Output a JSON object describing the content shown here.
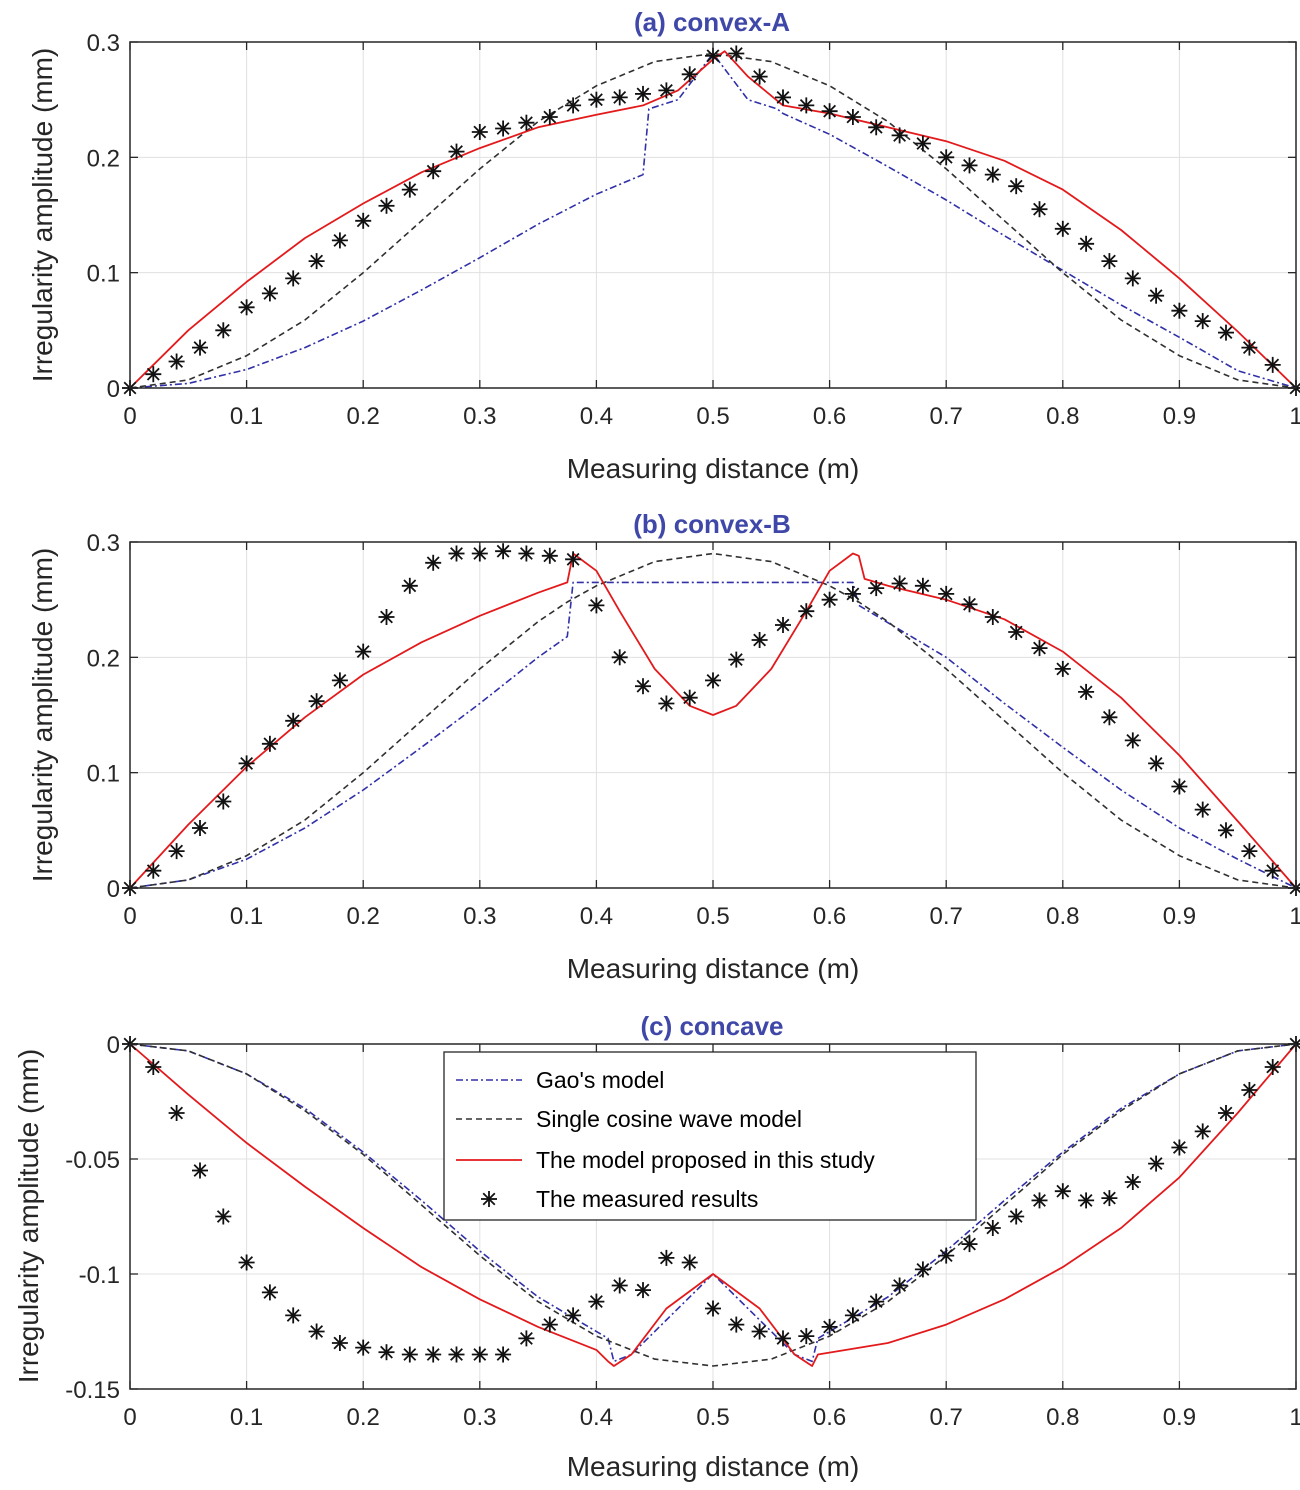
{
  "colors": {
    "gao": "#3030a8",
    "cosine": "#303030",
    "proposed": "#e31a1c",
    "measured": "#111111",
    "title": "#3f48a8",
    "grid": "#e0e0e0",
    "axis": "#262626"
  },
  "legend": {
    "gao": "Gao's model",
    "cosine": "Single cosine wave model",
    "proposed": "The model proposed in this study",
    "measured": "The measured results"
  },
  "chart_data": [
    {
      "type": "line",
      "title": "(a) convex-A",
      "xlabel": "Measuring distance (m)",
      "ylabel": "Irregularity amplitude (mm)",
      "xlim": [
        0,
        1
      ],
      "ylim": [
        0,
        0.3
      ],
      "xticks": [
        "0",
        "0.1",
        "0.2",
        "0.3",
        "0.4",
        "0.5",
        "0.6",
        "0.7",
        "0.8",
        "0.9",
        "1"
      ],
      "yticks": [
        "0",
        "0.1",
        "0.2",
        "0.3"
      ],
      "grid": true,
      "series": [
        {
          "name": "Gao's model",
          "key": "gao",
          "style": "dashdot",
          "x": [
            0,
            0.05,
            0.1,
            0.15,
            0.2,
            0.25,
            0.3,
            0.35,
            0.4,
            0.44,
            0.445,
            0.47,
            0.5,
            0.53,
            0.555,
            0.56,
            0.6,
            0.65,
            0.7,
            0.75,
            0.8,
            0.85,
            0.9,
            0.95,
            1.0
          ],
          "y": [
            0,
            0.004,
            0.016,
            0.035,
            0.058,
            0.085,
            0.113,
            0.142,
            0.168,
            0.185,
            0.242,
            0.25,
            0.29,
            0.25,
            0.242,
            0.238,
            0.22,
            0.192,
            0.163,
            0.132,
            0.102,
            0.072,
            0.044,
            0.015,
            0
          ]
        },
        {
          "name": "Single cosine wave model",
          "key": "cosine",
          "style": "dashed",
          "x": [
            0,
            0.05,
            0.1,
            0.15,
            0.2,
            0.25,
            0.3,
            0.35,
            0.4,
            0.45,
            0.5,
            0.55,
            0.6,
            0.65,
            0.7,
            0.75,
            0.8,
            0.85,
            0.9,
            0.95,
            1.0
          ],
          "y": [
            0,
            0.007,
            0.028,
            0.059,
            0.1,
            0.145,
            0.19,
            0.231,
            0.262,
            0.283,
            0.29,
            0.283,
            0.262,
            0.231,
            0.19,
            0.145,
            0.1,
            0.059,
            0.028,
            0.007,
            0
          ]
        },
        {
          "name": "The model proposed in this study",
          "key": "proposed",
          "style": "solid",
          "x": [
            0,
            0.05,
            0.1,
            0.15,
            0.2,
            0.25,
            0.3,
            0.35,
            0.4,
            0.44,
            0.47,
            0.5,
            0.51,
            0.53,
            0.56,
            0.6,
            0.65,
            0.7,
            0.75,
            0.8,
            0.85,
            0.9,
            0.95,
            1.0
          ],
          "y": [
            0,
            0.05,
            0.092,
            0.13,
            0.16,
            0.187,
            0.208,
            0.226,
            0.237,
            0.245,
            0.258,
            0.285,
            0.292,
            0.27,
            0.245,
            0.238,
            0.226,
            0.214,
            0.197,
            0.172,
            0.137,
            0.095,
            0.049,
            0
          ]
        },
        {
          "name": "The measured results",
          "key": "measured",
          "style": "marker",
          "x": [
            0,
            0.02,
            0.04,
            0.06,
            0.08,
            0.1,
            0.12,
            0.14,
            0.16,
            0.18,
            0.2,
            0.22,
            0.24,
            0.26,
            0.28,
            0.3,
            0.32,
            0.34,
            0.36,
            0.38,
            0.4,
            0.42,
            0.44,
            0.46,
            0.48,
            0.5,
            0.52,
            0.54,
            0.56,
            0.58,
            0.6,
            0.62,
            0.64,
            0.66,
            0.68,
            0.7,
            0.72,
            0.74,
            0.76,
            0.78,
            0.8,
            0.82,
            0.84,
            0.86,
            0.88,
            0.9,
            0.92,
            0.94,
            0.96,
            0.98,
            1.0
          ],
          "y": [
            0,
            0.012,
            0.023,
            0.035,
            0.05,
            0.07,
            0.082,
            0.095,
            0.11,
            0.128,
            0.145,
            0.158,
            0.172,
            0.188,
            0.205,
            0.222,
            0.225,
            0.23,
            0.235,
            0.245,
            0.25,
            0.252,
            0.255,
            0.258,
            0.272,
            0.288,
            0.29,
            0.27,
            0.252,
            0.245,
            0.24,
            0.235,
            0.226,
            0.219,
            0.212,
            0.2,
            0.193,
            0.185,
            0.175,
            0.155,
            0.138,
            0.125,
            0.11,
            0.095,
            0.08,
            0.067,
            0.058,
            0.048,
            0.035,
            0.02,
            0
          ]
        }
      ]
    },
    {
      "type": "line",
      "title": "(b) convex-B",
      "xlabel": "Measuring distance (m)",
      "ylabel": "Irregularity amplitude (mm)",
      "xlim": [
        0,
        1
      ],
      "ylim": [
        0,
        0.3
      ],
      "xticks": [
        "0",
        "0.1",
        "0.2",
        "0.3",
        "0.4",
        "0.5",
        "0.6",
        "0.7",
        "0.8",
        "0.9",
        "1"
      ],
      "yticks": [
        "0",
        "0.1",
        "0.2",
        "0.3"
      ],
      "grid": true,
      "series": [
        {
          "name": "Gao's model",
          "key": "gao",
          "style": "dashdot",
          "x": [
            0,
            0.05,
            0.1,
            0.15,
            0.2,
            0.25,
            0.3,
            0.35,
            0.375,
            0.38,
            0.62,
            0.625,
            0.65,
            0.7,
            0.75,
            0.8,
            0.85,
            0.9,
            0.95,
            1.0
          ],
          "y": [
            0,
            0.007,
            0.025,
            0.052,
            0.085,
            0.122,
            0.16,
            0.2,
            0.218,
            0.265,
            0.265,
            0.245,
            0.23,
            0.2,
            0.16,
            0.122,
            0.085,
            0.052,
            0.025,
            0
          ]
        },
        {
          "name": "Single cosine wave model",
          "key": "cosine",
          "style": "dashed",
          "x": [
            0,
            0.05,
            0.1,
            0.15,
            0.2,
            0.25,
            0.3,
            0.35,
            0.375,
            0.4,
            0.45,
            0.5,
            0.55,
            0.6,
            0.625,
            0.65,
            0.7,
            0.75,
            0.8,
            0.85,
            0.9,
            0.95,
            1.0
          ],
          "y": [
            0,
            0.007,
            0.028,
            0.059,
            0.1,
            0.145,
            0.19,
            0.231,
            0.248,
            0.262,
            0.283,
            0.29,
            0.283,
            0.262,
            0.248,
            0.231,
            0.19,
            0.145,
            0.1,
            0.059,
            0.028,
            0.007,
            0
          ]
        },
        {
          "name": "The model proposed in this study",
          "key": "proposed",
          "style": "solid",
          "x": [
            0,
            0.05,
            0.1,
            0.15,
            0.2,
            0.25,
            0.3,
            0.35,
            0.375,
            0.38,
            0.4,
            0.42,
            0.45,
            0.48,
            0.5,
            0.52,
            0.55,
            0.58,
            0.6,
            0.62,
            0.625,
            0.63,
            0.65,
            0.7,
            0.75,
            0.8,
            0.85,
            0.9,
            0.95,
            1.0
          ],
          "y": [
            0,
            0.055,
            0.105,
            0.148,
            0.185,
            0.213,
            0.236,
            0.256,
            0.265,
            0.29,
            0.275,
            0.24,
            0.19,
            0.158,
            0.15,
            0.158,
            0.19,
            0.24,
            0.275,
            0.29,
            0.288,
            0.268,
            0.262,
            0.25,
            0.233,
            0.205,
            0.165,
            0.115,
            0.058,
            0
          ]
        },
        {
          "name": "The measured results",
          "key": "measured",
          "style": "marker",
          "x": [
            0,
            0.02,
            0.04,
            0.06,
            0.08,
            0.1,
            0.12,
            0.14,
            0.16,
            0.18,
            0.2,
            0.22,
            0.24,
            0.26,
            0.28,
            0.3,
            0.32,
            0.34,
            0.36,
            0.38,
            0.4,
            0.42,
            0.44,
            0.46,
            0.48,
            0.5,
            0.52,
            0.54,
            0.56,
            0.58,
            0.6,
            0.62,
            0.64,
            0.66,
            0.68,
            0.7,
            0.72,
            0.74,
            0.76,
            0.78,
            0.8,
            0.82,
            0.84,
            0.86,
            0.88,
            0.9,
            0.92,
            0.94,
            0.96,
            0.98,
            1.0
          ],
          "y": [
            0,
            0.015,
            0.032,
            0.052,
            0.075,
            0.108,
            0.125,
            0.145,
            0.162,
            0.18,
            0.205,
            0.235,
            0.262,
            0.282,
            0.29,
            0.29,
            0.292,
            0.29,
            0.288,
            0.285,
            0.245,
            0.2,
            0.175,
            0.16,
            0.165,
            0.18,
            0.198,
            0.215,
            0.228,
            0.24,
            0.25,
            0.255,
            0.26,
            0.264,
            0.262,
            0.255,
            0.246,
            0.235,
            0.222,
            0.208,
            0.19,
            0.17,
            0.148,
            0.128,
            0.108,
            0.088,
            0.068,
            0.05,
            0.032,
            0.015,
            0
          ]
        }
      ]
    },
    {
      "type": "line",
      "title": "(c) concave",
      "xlabel": "Measuring distance (m)",
      "ylabel": "Irregularity amplitude (mm)",
      "xlim": [
        0,
        1
      ],
      "ylim": [
        -0.15,
        0
      ],
      "xticks": [
        "0",
        "0.1",
        "0.2",
        "0.3",
        "0.4",
        "0.5",
        "0.6",
        "0.7",
        "0.8",
        "0.9",
        "1"
      ],
      "yticks": [
        "-0.15",
        "-0.1",
        "-0.05",
        "0"
      ],
      "grid": true,
      "series": [
        {
          "name": "Gao's model",
          "key": "gao",
          "style": "dashdot",
          "x": [
            0,
            0.05,
            0.1,
            0.15,
            0.2,
            0.25,
            0.3,
            0.35,
            0.41,
            0.415,
            0.43,
            0.5,
            0.57,
            0.585,
            0.59,
            0.65,
            0.7,
            0.75,
            0.8,
            0.85,
            0.9,
            0.95,
            1.0
          ],
          "y": [
            0,
            -0.003,
            -0.013,
            -0.028,
            -0.047,
            -0.068,
            -0.09,
            -0.11,
            -0.128,
            -0.138,
            -0.135,
            -0.1,
            -0.135,
            -0.138,
            -0.128,
            -0.11,
            -0.09,
            -0.068,
            -0.047,
            -0.028,
            -0.013,
            -0.003,
            0
          ]
        },
        {
          "name": "Single cosine wave model",
          "key": "cosine",
          "style": "dashed",
          "x": [
            0,
            0.05,
            0.1,
            0.15,
            0.2,
            0.25,
            0.3,
            0.35,
            0.4,
            0.45,
            0.5,
            0.55,
            0.6,
            0.65,
            0.7,
            0.75,
            0.8,
            0.85,
            0.9,
            0.95,
            1.0
          ],
          "y": [
            0,
            -0.003,
            -0.013,
            -0.029,
            -0.048,
            -0.07,
            -0.092,
            -0.112,
            -0.127,
            -0.137,
            -0.14,
            -0.137,
            -0.127,
            -0.112,
            -0.092,
            -0.07,
            -0.048,
            -0.029,
            -0.013,
            -0.003,
            0
          ]
        },
        {
          "name": "The model proposed in this study",
          "key": "proposed",
          "style": "solid",
          "x": [
            0,
            0.05,
            0.1,
            0.15,
            0.2,
            0.25,
            0.3,
            0.35,
            0.4,
            0.41,
            0.415,
            0.43,
            0.46,
            0.5,
            0.54,
            0.57,
            0.585,
            0.59,
            0.65,
            0.7,
            0.75,
            0.8,
            0.85,
            0.9,
            0.95,
            1.0
          ],
          "y": [
            0,
            -0.022,
            -0.043,
            -0.062,
            -0.08,
            -0.097,
            -0.111,
            -0.123,
            -0.133,
            -0.138,
            -0.14,
            -0.135,
            -0.115,
            -0.1,
            -0.115,
            -0.135,
            -0.14,
            -0.135,
            -0.13,
            -0.122,
            -0.111,
            -0.097,
            -0.08,
            -0.058,
            -0.03,
            0
          ]
        },
        {
          "name": "The measured results",
          "key": "measured",
          "style": "marker",
          "x": [
            0,
            0.02,
            0.04,
            0.06,
            0.08,
            0.1,
            0.12,
            0.14,
            0.16,
            0.18,
            0.2,
            0.22,
            0.24,
            0.26,
            0.28,
            0.3,
            0.32,
            0.34,
            0.36,
            0.38,
            0.4,
            0.42,
            0.44,
            0.46,
            0.48,
            0.5,
            0.52,
            0.54,
            0.56,
            0.58,
            0.6,
            0.62,
            0.64,
            0.66,
            0.68,
            0.7,
            0.72,
            0.74,
            0.76,
            0.78,
            0.8,
            0.82,
            0.84,
            0.86,
            0.88,
            0.9,
            0.92,
            0.94,
            0.96,
            0.98,
            1.0
          ],
          "y": [
            0,
            -0.01,
            -0.03,
            -0.055,
            -0.075,
            -0.095,
            -0.108,
            -0.118,
            -0.125,
            -0.13,
            -0.132,
            -0.134,
            -0.135,
            -0.135,
            -0.135,
            -0.135,
            -0.135,
            -0.128,
            -0.122,
            -0.118,
            -0.112,
            -0.105,
            -0.107,
            -0.093,
            -0.095,
            -0.115,
            -0.122,
            -0.125,
            -0.128,
            -0.127,
            -0.123,
            -0.118,
            -0.112,
            -0.105,
            -0.098,
            -0.092,
            -0.087,
            -0.08,
            -0.075,
            -0.068,
            -0.064,
            -0.068,
            -0.067,
            -0.06,
            -0.052,
            -0.045,
            -0.038,
            -0.03,
            -0.02,
            -0.01,
            0
          ]
        }
      ]
    }
  ]
}
